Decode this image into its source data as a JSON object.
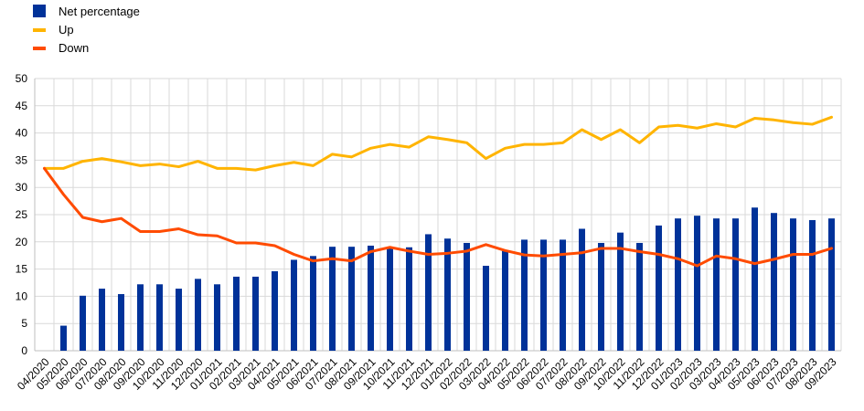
{
  "chart_data": {
    "type": "bar+line",
    "title": "",
    "xlabel": "",
    "ylabel": "",
    "ylim": [
      0,
      50
    ],
    "yticks": [
      0,
      5,
      10,
      15,
      20,
      25,
      30,
      35,
      40,
      45,
      50
    ],
    "grid": true,
    "legend_position": "top-left",
    "categories": [
      "04/2020",
      "05/2020",
      "06/2020",
      "07/2020",
      "08/2020",
      "09/2020",
      "10/2020",
      "11/2020",
      "12/2020",
      "01/2021",
      "02/2021",
      "03/2021",
      "04/2021",
      "05/2021",
      "06/2021",
      "07/2021",
      "08/2021",
      "09/2021",
      "10/2021",
      "11/2021",
      "12/2021",
      "01/2022",
      "02/2022",
      "03/2022",
      "04/2022",
      "05/2022",
      "06/2022",
      "07/2022",
      "08/2022",
      "09/2022",
      "10/2022",
      "11/2022",
      "12/2022",
      "01/2023",
      "02/2023",
      "03/2023",
      "04/2023",
      "05/2023",
      "06/2023",
      "07/2023",
      "08/2023",
      "09/2023"
    ],
    "series": [
      {
        "name": "Net percentage",
        "kind": "bar",
        "color": "#003299",
        "values": [
          null,
          4.6,
          10.1,
          11.4,
          10.4,
          12.2,
          12.2,
          11.4,
          13.2,
          12.2,
          13.6,
          13.6,
          14.6,
          16.7,
          17.4,
          19.1,
          19.1,
          19.3,
          19.1,
          19.0,
          21.4,
          20.6,
          19.8,
          15.6,
          18.3,
          20.4,
          20.4,
          20.4,
          22.4,
          19.8,
          21.7,
          19.8,
          23.0,
          24.3,
          24.8,
          24.3,
          24.3,
          26.3,
          25.3,
          24.3,
          24.0,
          24.3
        ]
      },
      {
        "name": "Up",
        "kind": "line",
        "color": "#ffb400",
        "values": [
          33.5,
          33.5,
          34.8,
          35.3,
          34.7,
          34.0,
          34.3,
          33.8,
          34.8,
          33.5,
          33.5,
          33.2,
          34.0,
          34.6,
          34.0,
          36.1,
          35.6,
          37.2,
          37.9,
          37.4,
          39.3,
          38.8,
          38.2,
          35.3,
          37.2,
          37.9,
          37.9,
          38.2,
          40.6,
          38.8,
          40.6,
          38.2,
          41.1,
          41.4,
          40.9,
          41.7,
          41.1,
          42.7,
          42.4,
          41.9,
          41.6,
          42.9
        ]
      },
      {
        "name": "Down",
        "kind": "line",
        "color": "#ff4b00",
        "values": [
          33.5,
          28.7,
          24.5,
          23.7,
          24.3,
          21.9,
          21.9,
          22.4,
          21.3,
          21.1,
          19.8,
          19.8,
          19.3,
          17.7,
          16.5,
          16.9,
          16.5,
          18.2,
          19.0,
          18.3,
          17.7,
          17.9,
          18.3,
          19.5,
          18.4,
          17.6,
          17.4,
          17.7,
          18.0,
          18.8,
          18.8,
          18.2,
          17.7,
          16.9,
          15.6,
          17.4,
          16.9,
          16.0,
          16.8,
          17.7,
          17.7,
          18.8
        ]
      }
    ]
  }
}
